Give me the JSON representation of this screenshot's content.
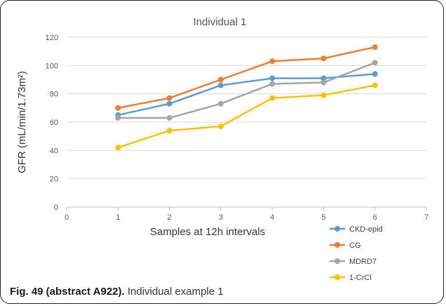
{
  "chart_data": {
    "type": "line",
    "title": "Individual 1",
    "xlabel": "Samples at 12h intervals",
    "ylabel": "GFR (mL/min/1.73m²)",
    "xlim": [
      0,
      7
    ],
    "ylim": [
      0,
      120
    ],
    "x_ticks": [
      0,
      1,
      2,
      3,
      4,
      5,
      6,
      7
    ],
    "y_ticks": [
      0,
      20,
      40,
      60,
      80,
      100,
      120
    ],
    "grid": "horizontal",
    "legend_position": "bottom-right",
    "x": [
      1,
      2,
      3,
      4,
      5,
      6
    ],
    "series": [
      {
        "name": "CKD-epid",
        "color": "#5B9BD5",
        "values": [
          65,
          73,
          86,
          91,
          91,
          94
        ]
      },
      {
        "name": "CG",
        "color": "#ED7D31",
        "values": [
          70,
          77,
          90,
          103,
          105,
          113
        ]
      },
      {
        "name": "MDRD7",
        "color": "#A5A5A5",
        "values": [
          63,
          63,
          73,
          87,
          88,
          102
        ]
      },
      {
        "name": "1-CrCl",
        "color": "#FFC000",
        "values": [
          42,
          54,
          57,
          77,
          79,
          86
        ]
      }
    ]
  },
  "caption": {
    "lead": "Fig. 49 (abstract A922).",
    "text": " Individual example 1"
  }
}
